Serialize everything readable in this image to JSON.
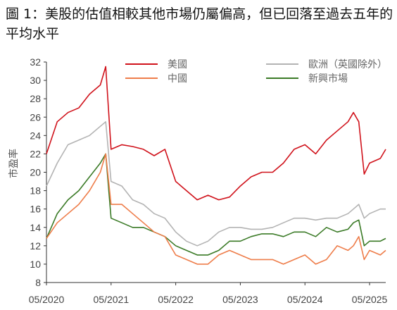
{
  "title": "圖 1：美股的估值相較其他市場仍屬偏高，但已回落至過去五年的平均水平",
  "chart_data": {
    "type": "line",
    "ylabel": "市盈率",
    "xlabel": "",
    "ylim": [
      8,
      32
    ],
    "yticks": [
      8,
      10,
      12,
      14,
      16,
      18,
      20,
      22,
      24,
      26,
      28,
      30,
      32
    ],
    "xlim": [
      "2020-05",
      "2025-08"
    ],
    "xticks": [
      "05/2020",
      "05/2021",
      "05/2022",
      "05/2023",
      "05/2024",
      "05/2025"
    ],
    "grid": false,
    "legend_position": "top",
    "x": [
      "2020-05",
      "2020-07",
      "2020-09",
      "2020-11",
      "2021-01",
      "2021-03",
      "2021-04",
      "2021-05",
      "2021-07",
      "2021-09",
      "2021-11",
      "2022-01",
      "2022-03",
      "2022-05",
      "2022-07",
      "2022-09",
      "2022-11",
      "2023-01",
      "2023-03",
      "2023-05",
      "2023-07",
      "2023-09",
      "2023-11",
      "2024-01",
      "2024-03",
      "2024-05",
      "2024-07",
      "2024-09",
      "2024-11",
      "2025-01",
      "2025-02",
      "2025-03",
      "2025-04",
      "2025-05",
      "2025-07",
      "2025-08"
    ],
    "series": [
      {
        "name": "美國",
        "color": "#d0121b",
        "values": [
          22.0,
          25.5,
          26.5,
          27.0,
          28.5,
          29.5,
          31.5,
          22.5,
          23.0,
          22.8,
          22.5,
          21.8,
          22.5,
          19.0,
          18.0,
          17.0,
          17.5,
          17.0,
          17.3,
          18.5,
          19.5,
          20.0,
          20.0,
          21.0,
          22.5,
          23.0,
          22.0,
          23.5,
          24.5,
          25.5,
          26.5,
          25.5,
          19.8,
          21.0,
          21.5,
          22.5
        ]
      },
      {
        "name": "中國",
        "color": "#ee7d4a",
        "values": [
          12.8,
          14.5,
          15.5,
          16.5,
          18.0,
          20.0,
          22.0,
          16.5,
          16.5,
          15.5,
          14.5,
          13.5,
          13.0,
          11.0,
          10.5,
          10.0,
          10.0,
          11.0,
          11.5,
          11.0,
          10.5,
          10.5,
          10.5,
          10.0,
          10.5,
          11.0,
          10.0,
          10.5,
          12.0,
          11.5,
          12.0,
          13.0,
          10.5,
          11.5,
          11.0,
          11.5
        ]
      },
      {
        "name": "歐洲（英國除外）",
        "color": "#b3b3b3",
        "values": [
          18.5,
          21.0,
          23.0,
          23.5,
          24.0,
          25.0,
          25.5,
          19.0,
          18.5,
          17.0,
          16.5,
          15.5,
          15.0,
          13.5,
          12.5,
          12.0,
          12.5,
          13.5,
          14.0,
          14.0,
          13.8,
          13.8,
          14.0,
          14.5,
          15.0,
          15.0,
          14.8,
          15.0,
          15.0,
          15.5,
          16.0,
          16.5,
          15.0,
          15.5,
          16.0,
          16.0
        ]
      },
      {
        "name": "新興市場",
        "color": "#3a7a26",
        "values": [
          12.8,
          15.5,
          17.0,
          18.0,
          19.5,
          21.0,
          22.0,
          15.0,
          14.5,
          14.0,
          14.0,
          13.5,
          13.0,
          12.0,
          11.5,
          11.0,
          11.0,
          11.5,
          12.5,
          12.5,
          13.0,
          13.3,
          13.3,
          13.0,
          13.5,
          13.5,
          13.0,
          14.0,
          13.5,
          13.8,
          14.5,
          14.8,
          12.0,
          12.5,
          12.5,
          12.8
        ]
      }
    ]
  }
}
